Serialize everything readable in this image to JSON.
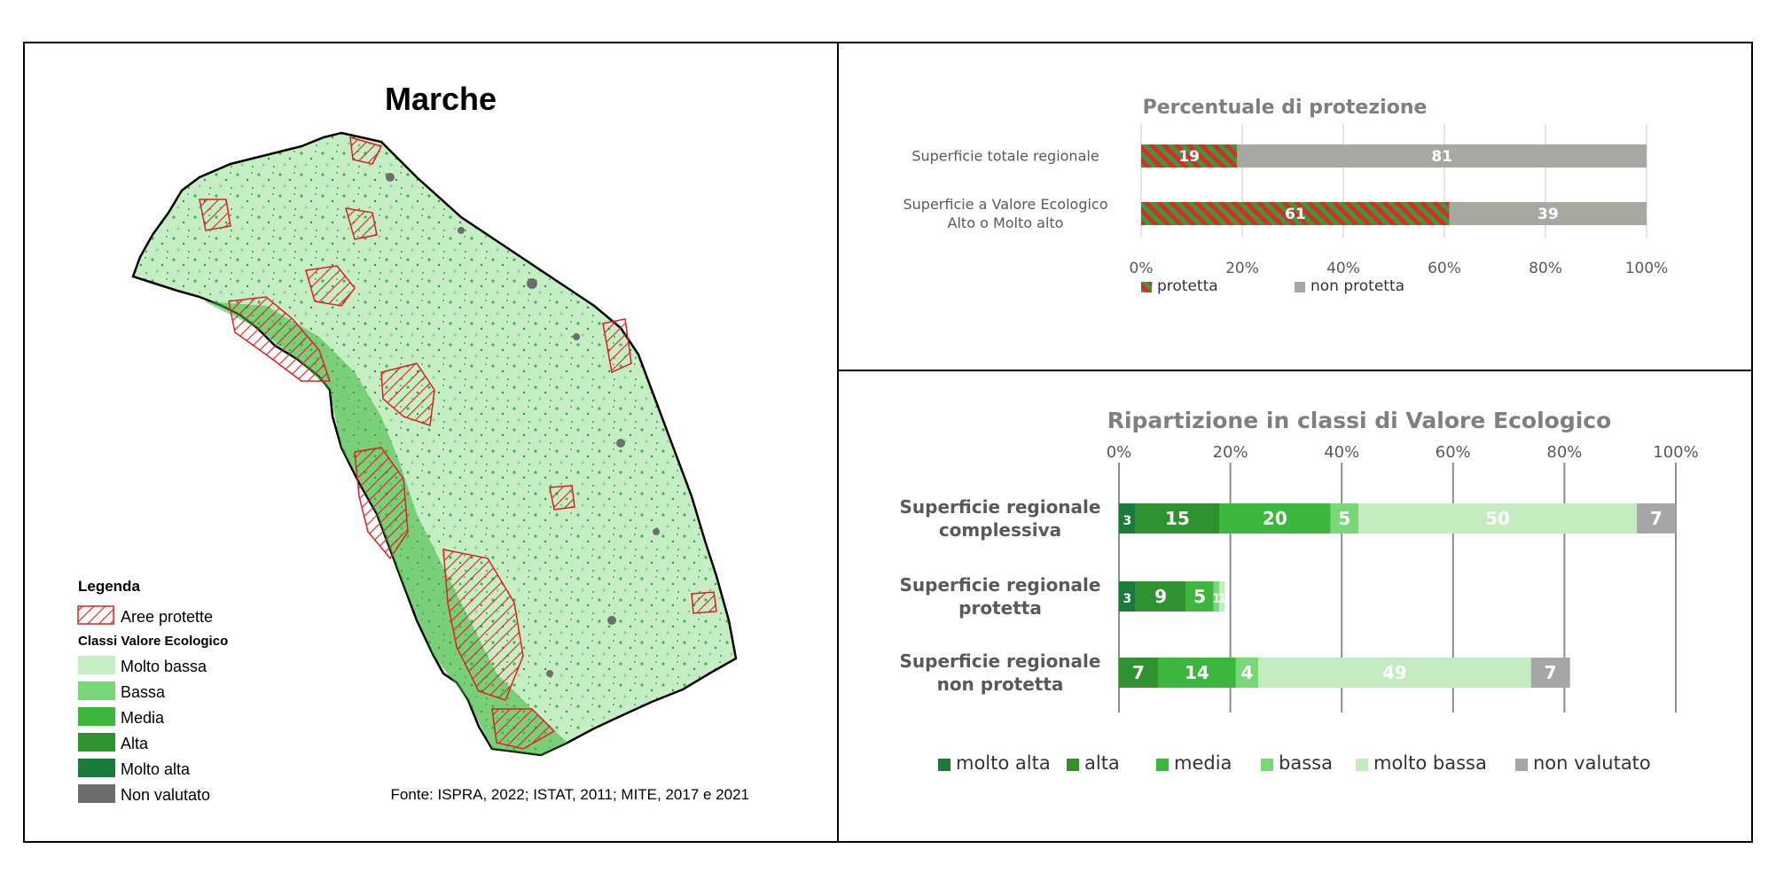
{
  "map_panel": {
    "title": "Marche",
    "legend": {
      "title": "Legenda",
      "protected_label": "Aree protette",
      "classes_title": "Classi Valore Ecologico",
      "classes": [
        {
          "label": "Molto bassa",
          "color": "#c5eec5"
        },
        {
          "label": "Bassa",
          "color": "#78d878"
        },
        {
          "label": "Media",
          "color": "#3cb63c"
        },
        {
          "label": "Alta",
          "color": "#2e922e"
        },
        {
          "label": "Molto alta",
          "color": "#1a7a3a"
        },
        {
          "label": "Non valutato",
          "color": "#6e6e6e"
        }
      ]
    },
    "source": "Fonte: ISPRA, 2022; ISTAT, 2011; MITE, 2017 e 2021"
  },
  "chart_data": [
    {
      "type": "bar",
      "orientation": "horizontal",
      "stacked": true,
      "title": "Percentuale di protezione",
      "categories": [
        "Superficie totale regionale",
        "Superficie a Valore Ecologico Alto o Molto alto"
      ],
      "category_lines": [
        [
          "Superficie totale regionale"
        ],
        [
          "Superficie a Valore Ecologico",
          "Alto o Molto alto"
        ]
      ],
      "series": [
        {
          "name": "protetta",
          "values": [
            19,
            61
          ],
          "color": "#d92b2b",
          "hatch": "#3a9a3a"
        },
        {
          "name": "non protetta",
          "values": [
            81,
            39
          ],
          "color": "#a6a99f"
        }
      ],
      "xlim": [
        0,
        100
      ],
      "ticks": [
        "0%",
        "20%",
        "40%",
        "60%",
        "80%",
        "100%"
      ],
      "grid": true,
      "legend": "bottom"
    },
    {
      "type": "bar",
      "orientation": "horizontal",
      "stacked": true,
      "title": "Ripartizione in classi di Valore Ecologico",
      "categories": [
        "Superficie regionale complessiva",
        "Superficie regionale protetta",
        "Superficie regionale non protetta"
      ],
      "category_lines": [
        [
          "Superficie regionale",
          "complessiva"
        ],
        [
          "Superficie regionale",
          "protetta"
        ],
        [
          "Superficie regionale",
          "non protetta"
        ]
      ],
      "series": [
        {
          "name": "molto alta",
          "values": [
            3,
            3,
            0
          ],
          "color": "#1a7a3a"
        },
        {
          "name": "alta",
          "values": [
            15,
            9,
            7
          ],
          "color": "#2e922e"
        },
        {
          "name": "media",
          "values": [
            20,
            5,
            14
          ],
          "color": "#3cb63c"
        },
        {
          "name": "bassa",
          "values": [
            5,
            1,
            4
          ],
          "color": "#78d878"
        },
        {
          "name": "molto bassa",
          "values": [
            50,
            1,
            49
          ],
          "color": "#c3ecc0"
        },
        {
          "name": "non valutato",
          "values": [
            7,
            0,
            7
          ],
          "color": "#a6a6a6"
        }
      ],
      "xlim": [
        0,
        100
      ],
      "ticks": [
        "0%",
        "20%",
        "40%",
        "60%",
        "80%",
        "100%"
      ],
      "grid": true,
      "legend": "bottom"
    }
  ]
}
